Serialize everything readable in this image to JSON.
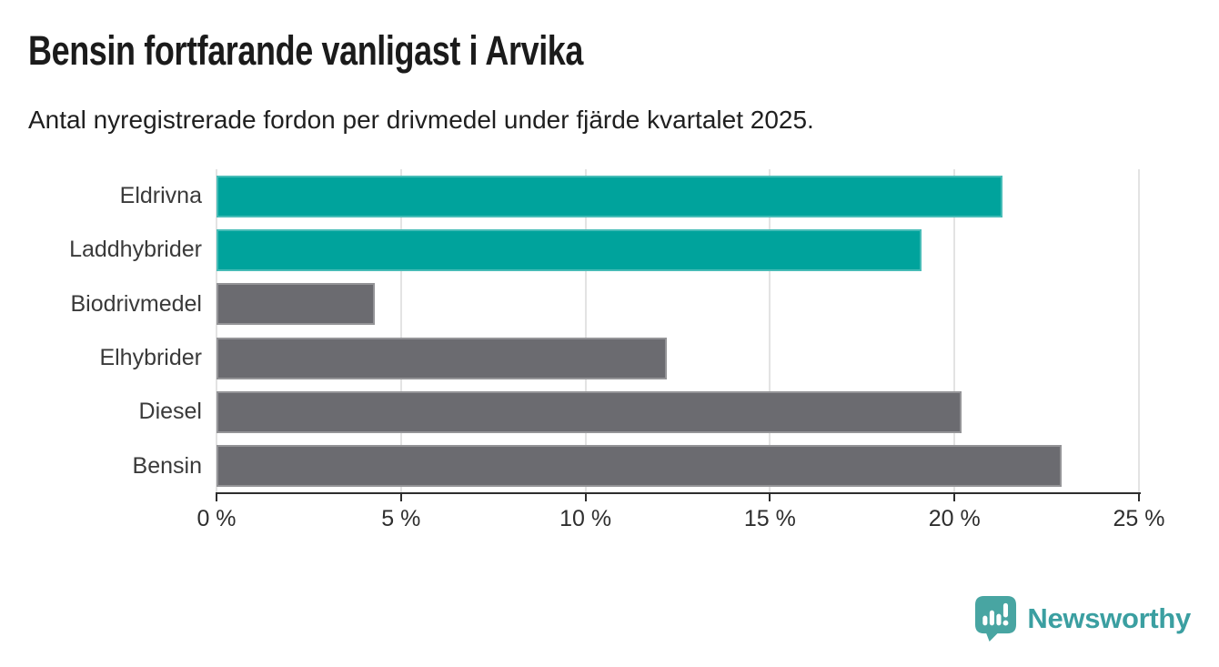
{
  "header": {
    "title": "Bensin fortfarande vanligast i Arvika",
    "subtitle": "Antal nyregistrerade fordon per drivmedel under fjärde kvartalet 2025."
  },
  "chart_data": {
    "type": "bar",
    "orientation": "horizontal",
    "title": "Bensin fortfarande vanligast i Arvika",
    "subtitle": "Antal nyregistrerade fordon per drivmedel under fjärde kvartalet 2025.",
    "categories": [
      "Eldrivna",
      "Laddhybrider",
      "Biodrivmedel",
      "Elhybrider",
      "Diesel",
      "Bensin"
    ],
    "values": [
      21.3,
      19.1,
      4.3,
      12.2,
      20.2,
      22.9
    ],
    "unit": "%",
    "xlim": [
      0,
      25
    ],
    "x_tick_values": [
      0,
      5,
      10,
      15,
      20,
      25
    ],
    "x_tick_labels": [
      "0 %",
      "5 %",
      "10 %",
      "15 %",
      "20 %",
      "25 %"
    ],
    "grid": true,
    "legend": false,
    "bar_colors": [
      "#00a39c",
      "#00a39c",
      "#6b6b70",
      "#6b6b70",
      "#6b6b70",
      "#6b6b70"
    ],
    "highlight_color": "#00a39c",
    "default_color": "#6b6b70",
    "gridline_color": "#e3e3e3",
    "axis_color": "#2d2d2d"
  },
  "footer": {
    "brand": "Newsworthy",
    "brand_color": "#3b9fa1",
    "logo_icon": "newsworthy-bar-chart-bubble-icon",
    "logo_color": "#48a5a2"
  }
}
